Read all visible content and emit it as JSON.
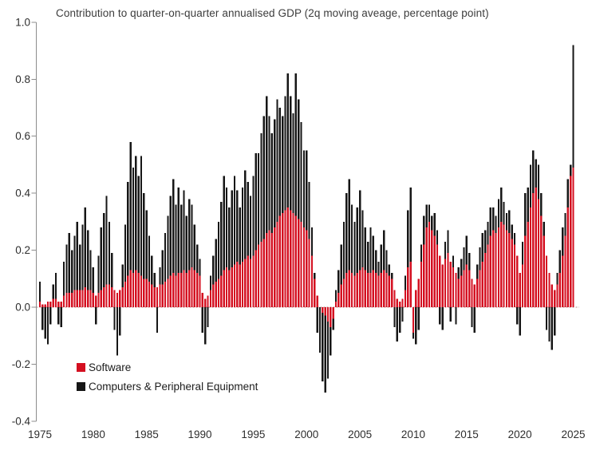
{
  "chart_data": {
    "type": "bar",
    "stacked": true,
    "title": "Contribution to quarter-on-quarter annualised GDP (2q moving aveage, percentage point)",
    "x_description": "Quarterly, 1975Q1 to 2025Q1",
    "x_ticks": [
      "1975",
      "1980",
      "1985",
      "1990",
      "1995",
      "2000",
      "2005",
      "2010",
      "2015",
      "2020",
      "2025"
    ],
    "y_ticks": [
      1.0,
      0.8,
      0.6,
      0.4,
      0.2,
      0.0,
      -0.2,
      -0.4
    ],
    "ylim": [
      -0.4,
      1.0
    ],
    "grid": "none",
    "zero_line": "dotted",
    "legend_position": "inside bottom-left",
    "series": [
      {
        "name": "Software",
        "color": "#d40f20",
        "values": [
          0.02,
          0.01,
          0.01,
          0.02,
          0.02,
          0.03,
          0.03,
          0.02,
          0.02,
          0.04,
          0.05,
          0.05,
          0.05,
          0.06,
          0.06,
          0.06,
          0.06,
          0.07,
          0.06,
          0.06,
          0.05,
          0.04,
          0.05,
          0.06,
          0.07,
          0.08,
          0.08,
          0.07,
          0.06,
          0.05,
          0.06,
          0.07,
          0.09,
          0.11,
          0.13,
          0.12,
          0.13,
          0.12,
          0.11,
          0.1,
          0.1,
          0.09,
          0.08,
          0.07,
          0.07,
          0.08,
          0.08,
          0.09,
          0.1,
          0.11,
          0.12,
          0.11,
          0.12,
          0.12,
          0.13,
          0.12,
          0.13,
          0.14,
          0.13,
          0.12,
          0.11,
          0.05,
          0.03,
          0.04,
          0.06,
          0.08,
          0.09,
          0.1,
          0.11,
          0.13,
          0.14,
          0.13,
          0.14,
          0.15,
          0.16,
          0.15,
          0.16,
          0.17,
          0.18,
          0.17,
          0.18,
          0.2,
          0.22,
          0.23,
          0.24,
          0.26,
          0.27,
          0.26,
          0.28,
          0.3,
          0.32,
          0.33,
          0.34,
          0.35,
          0.34,
          0.33,
          0.32,
          0.31,
          0.3,
          0.28,
          0.27,
          0.24,
          0.18,
          0.1,
          0.04,
          0.0,
          -0.02,
          -0.03,
          -0.05,
          -0.07,
          -0.04,
          0.02,
          0.05,
          0.08,
          0.1,
          0.12,
          0.13,
          0.12,
          0.11,
          0.12,
          0.13,
          0.14,
          0.13,
          0.12,
          0.12,
          0.13,
          0.12,
          0.11,
          0.12,
          0.13,
          0.12,
          0.11,
          0.1,
          0.06,
          0.03,
          0.02,
          0.03,
          0.06,
          0.14,
          0.16,
          -0.09,
          0.06,
          0.1,
          0.16,
          0.22,
          0.28,
          0.3,
          0.27,
          0.25,
          0.22,
          0.18,
          0.15,
          0.17,
          0.19,
          0.16,
          0.14,
          0.12,
          0.1,
          0.11,
          0.13,
          0.15,
          0.13,
          0.1,
          0.08,
          0.1,
          0.13,
          0.16,
          0.19,
          0.22,
          0.25,
          0.27,
          0.26,
          0.28,
          0.3,
          0.29,
          0.27,
          0.26,
          0.24,
          0.22,
          0.18,
          0.12,
          0.15,
          0.25,
          0.3,
          0.35,
          0.4,
          0.42,
          0.38,
          0.32,
          0.25,
          0.18,
          0.12,
          0.08,
          0.06,
          0.08,
          0.12,
          0.18,
          0.25,
          0.35,
          0.46,
          0.49
        ]
      },
      {
        "name": "Computers & Peripheral Equipment",
        "color": "#161616",
        "values": [
          0.07,
          -0.08,
          -0.11,
          -0.13,
          -0.06,
          0.05,
          0.09,
          -0.06,
          -0.07,
          0.12,
          0.17,
          0.21,
          0.15,
          0.19,
          0.24,
          0.16,
          0.23,
          0.28,
          0.21,
          0.14,
          0.09,
          -0.06,
          0.13,
          0.22,
          0.26,
          0.31,
          0.22,
          0.12,
          -0.08,
          -0.17,
          -0.1,
          0.08,
          0.2,
          0.33,
          0.45,
          0.37,
          0.4,
          0.34,
          0.42,
          0.3,
          0.24,
          0.16,
          0.1,
          0.05,
          -0.09,
          0.06,
          0.12,
          0.17,
          0.22,
          0.28,
          0.33,
          0.25,
          0.3,
          0.24,
          0.28,
          0.2,
          0.25,
          0.22,
          0.16,
          0.1,
          0.06,
          -0.09,
          -0.13,
          -0.07,
          0.05,
          0.1,
          0.15,
          0.2,
          0.26,
          0.33,
          0.28,
          0.22,
          0.27,
          0.31,
          0.25,
          0.2,
          0.26,
          0.31,
          0.26,
          0.22,
          0.28,
          0.34,
          0.32,
          0.38,
          0.43,
          0.48,
          0.4,
          0.35,
          0.38,
          0.43,
          0.38,
          0.34,
          0.4,
          0.47,
          0.4,
          0.35,
          0.5,
          0.42,
          0.35,
          0.27,
          0.28,
          0.2,
          0.1,
          0.02,
          -0.09,
          -0.16,
          -0.24,
          -0.27,
          -0.2,
          -0.1,
          -0.04,
          0.04,
          0.08,
          0.14,
          0.2,
          0.28,
          0.32,
          0.24,
          0.19,
          0.23,
          0.28,
          0.2,
          0.15,
          0.11,
          0.16,
          0.12,
          0.08,
          0.05,
          0.1,
          0.14,
          0.08,
          0.04,
          0.02,
          -0.07,
          -0.12,
          -0.09,
          -0.05,
          0.05,
          0.2,
          0.26,
          -0.02,
          -0.13,
          -0.08,
          0.06,
          0.1,
          0.08,
          0.06,
          0.05,
          0.08,
          0.05,
          -0.06,
          -0.08,
          0.06,
          0.08,
          -0.05,
          0.04,
          -0.06,
          0.04,
          0.06,
          0.08,
          0.1,
          0.06,
          -0.07,
          -0.09,
          0.05,
          0.08,
          0.1,
          0.08,
          0.08,
          0.1,
          0.08,
          0.06,
          0.1,
          0.12,
          0.08,
          0.06,
          0.08,
          0.05,
          0.04,
          -0.06,
          -0.1,
          0.08,
          0.15,
          0.12,
          0.15,
          0.15,
          0.1,
          0.12,
          0.08,
          0.05,
          -0.08,
          -0.12,
          -0.15,
          -0.1,
          0.04,
          0.08,
          0.1,
          0.08,
          0.1,
          0.04,
          0.43
        ]
      }
    ]
  }
}
